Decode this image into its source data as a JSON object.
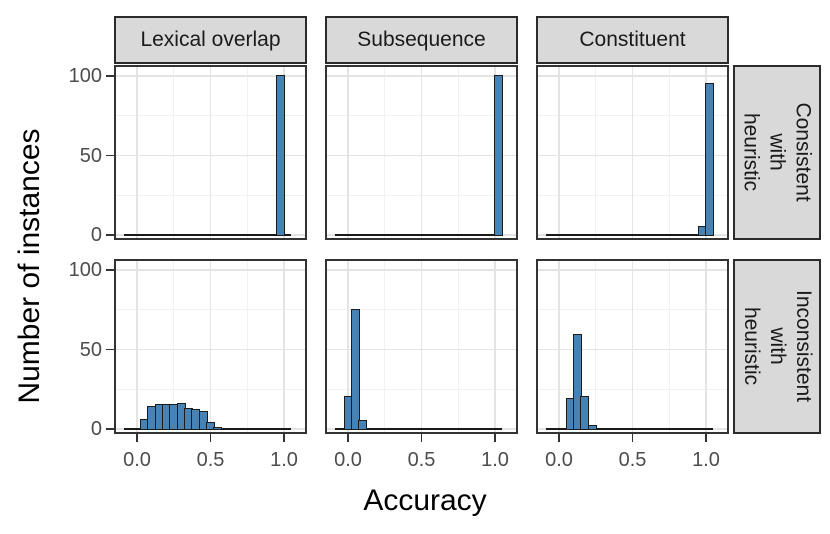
{
  "chart_data": {
    "type": "bar",
    "subtype": "faceted-histogram",
    "title": "",
    "xlabel": "Accuracy",
    "ylabel": "Number of instances",
    "col_facets": [
      "Lexical overlap",
      "Subsequence",
      "Constituent"
    ],
    "row_facets": [
      "Consistent\nwith heuristic",
      "Inconsistent\nwith heuristic"
    ],
    "x_ticks": [
      0.0,
      0.5,
      1.0
    ],
    "x_tick_labels": [
      "0.0",
      "0.5",
      "1.0"
    ],
    "y_ticks": [
      0,
      50,
      100
    ],
    "y_tick_labels": [
      "0",
      "50",
      "100"
    ],
    "xlim": [
      -0.156,
      1.156
    ],
    "ylim": [
      -3.1,
      106.9
    ],
    "grid": "major and minor, light gray on white panel",
    "legend": "none",
    "bin_width": 0.05,
    "zero_line_extent": [
      -0.09,
      1.05
    ],
    "panels": [
      {
        "row": 0,
        "col": 0,
        "row_label": "Consistent with heuristic",
        "col_label": "Lexical overlap",
        "bin_centers": [
          0.975
        ],
        "counts": [
          100
        ]
      },
      {
        "row": 0,
        "col": 1,
        "row_label": "Consistent with heuristic",
        "col_label": "Subsequence",
        "bin_centers": [
          1.025
        ],
        "counts": [
          100
        ]
      },
      {
        "row": 0,
        "col": 2,
        "row_label": "Consistent with heuristic",
        "col_label": "Constituent",
        "bin_centers": [
          0.975,
          1.025
        ],
        "counts": [
          5,
          95
        ]
      },
      {
        "row": 1,
        "col": 0,
        "row_label": "Inconsistent with heuristic",
        "col_label": "Lexical overlap",
        "bin_centers": [
          0.05,
          0.1,
          0.15,
          0.2,
          0.25,
          0.3,
          0.35,
          0.4,
          0.45,
          0.5,
          0.55
        ],
        "counts": [
          6,
          14,
          15,
          15,
          15,
          16,
          13,
          12,
          11,
          4,
          1
        ]
      },
      {
        "row": 1,
        "col": 1,
        "row_label": "Inconsistent with heuristic",
        "col_label": "Subsequence",
        "bin_centers": [
          0.0,
          0.05,
          0.1
        ],
        "counts": [
          20,
          75,
          5
        ]
      },
      {
        "row": 1,
        "col": 2,
        "row_label": "Inconsistent with heuristic",
        "col_label": "Constituent",
        "bin_centers": [
          0.075,
          0.125,
          0.175,
          0.225
        ],
        "counts": [
          19,
          59,
          20,
          2
        ]
      }
    ],
    "colors": {
      "bar_fill": "#4682b4",
      "bar_stroke": "#1c1c1c",
      "strip_bg": "#d9d9d9",
      "strip_border": "#2b2b2b",
      "panel_border": "#333333",
      "panel_bg": "#ffffff",
      "grid_major": "#e4e4e4",
      "grid_minor": "#f1f1f1",
      "tick_mark": "#333333",
      "tick_label": "#4d4d4d",
      "axis_title": "#000000",
      "zero_line": "#1a1a1a"
    }
  }
}
